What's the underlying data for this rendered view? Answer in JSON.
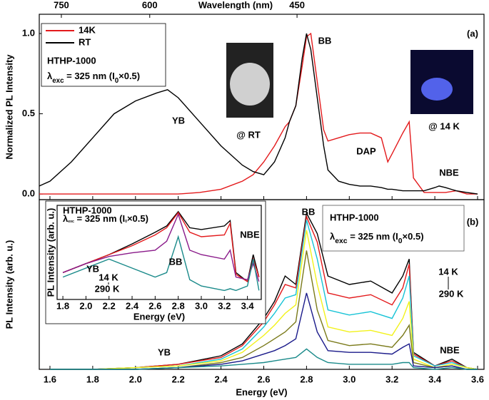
{
  "chart_data": [
    {
      "type": "line",
      "panel_label": "(a)",
      "ylabel": "Normalized PL Intensity",
      "x2label": "Wavelength (nm)",
      "x2ticks": [
        750,
        600,
        450
      ],
      "xlim": [
        1.55,
        3.63
      ],
      "ylim": [
        -0.035,
        1.12
      ],
      "yticks": [
        {
          "value": 0,
          "label": "0.0"
        },
        {
          "value": 0.5,
          "label": "0.5"
        },
        {
          "value": 1,
          "label": "1.0"
        }
      ],
      "legend": "upper left",
      "sample": "HTHP-1000",
      "excitation": [
        "λ",
        "exc",
        " = 325 nm (I",
        "0",
        "×0.5)"
      ],
      "x": [
        1.55,
        1.6,
        1.7,
        1.8,
        1.9,
        2.0,
        2.1,
        2.15,
        2.2,
        2.3,
        2.4,
        2.5,
        2.55,
        2.6,
        2.65,
        2.7,
        2.72,
        2.75,
        2.78,
        2.8,
        2.82,
        2.85,
        2.88,
        2.9,
        2.95,
        3.0,
        3.05,
        3.1,
        3.15,
        3.18,
        3.2,
        3.25,
        3.28,
        3.3,
        3.35,
        3.4,
        3.42,
        3.45,
        3.5,
        3.55,
        3.6
      ],
      "series": [
        {
          "name": "14K",
          "color": "#e31a1c",
          "values": [
            0,
            0,
            0,
            0,
            0,
            0,
            0,
            0,
            0,
            0.01,
            0.03,
            0.08,
            0.12,
            0.2,
            0.3,
            0.42,
            0.45,
            0.55,
            0.8,
            0.98,
            1.0,
            0.7,
            0.4,
            0.33,
            0.35,
            0.37,
            0.38,
            0.38,
            0.35,
            0.2,
            0.25,
            0.38,
            0.45,
            0.1,
            0.01,
            0.01,
            0.01,
            0.01,
            0.02,
            0,
            0
          ]
        },
        {
          "name": "RT",
          "color": "#000000",
          "values": [
            0.05,
            0.08,
            0.2,
            0.35,
            0.5,
            0.58,
            0.63,
            0.65,
            0.6,
            0.45,
            0.3,
            0.18,
            0.14,
            0.12,
            0.2,
            0.35,
            0.45,
            0.55,
            0.85,
            1.0,
            0.9,
            0.6,
            0.3,
            0.15,
            0.08,
            0.06,
            0.05,
            0.05,
            0.04,
            0.03,
            0.03,
            0.02,
            0.02,
            0.02,
            0.02,
            0.04,
            0.05,
            0.04,
            0.02,
            0.01,
            0
          ]
        }
      ],
      "annotations": [
        "YB",
        "@ RT",
        "BB",
        "DAP",
        "@ 14 K",
        "NBE"
      ]
    },
    {
      "type": "line",
      "panel_label": "(b)",
      "ylabel": "PL Intensity (arb. u.)",
      "xlabel": "Energy (eV)",
      "xlim": [
        1.55,
        3.63
      ],
      "ylim": [
        0,
        1
      ],
      "xticks": [
        1.6,
        1.8,
        {
          "value": 2,
          "label": "2.0"
        },
        2.2,
        2.4,
        2.6,
        2.8,
        {
          "value": 3,
          "label": "3.0"
        },
        3.2,
        3.4,
        3.6
      ],
      "sample": "HTHP-1000",
      "excitation": [
        "λ",
        "exc",
        " = 325 nm (I",
        "0",
        "×0.5)"
      ],
      "x": [
        1.6,
        1.8,
        2.0,
        2.2,
        2.4,
        2.5,
        2.6,
        2.65,
        2.7,
        2.75,
        2.8,
        2.85,
        2.9,
        3.0,
        3.1,
        3.2,
        3.25,
        3.28,
        3.3,
        3.4,
        3.48,
        3.55,
        3.6
      ],
      "series": [
        {
          "color": "#000000",
          "values": [
            0,
            0,
            0.01,
            0.03,
            0.08,
            0.15,
            0.3,
            0.4,
            0.55,
            0.5,
            0.92,
            0.8,
            0.55,
            0.5,
            0.52,
            0.45,
            0.55,
            0.65,
            0.1,
            0.02,
            0.06,
            0.01,
            0
          ]
        },
        {
          "color": "#e31a1c",
          "values": [
            0,
            0,
            0.01,
            0.03,
            0.07,
            0.14,
            0.28,
            0.38,
            0.5,
            0.48,
            0.9,
            0.75,
            0.45,
            0.42,
            0.44,
            0.38,
            0.48,
            0.62,
            0.09,
            0.02,
            0.05,
            0.01,
            0
          ]
        },
        {
          "color": "#17c3d6",
          "values": [
            0,
            0,
            0.01,
            0.02,
            0.06,
            0.12,
            0.25,
            0.33,
            0.42,
            0.44,
            0.88,
            0.65,
            0.35,
            0.32,
            0.34,
            0.3,
            0.42,
            0.55,
            0.08,
            0.02,
            0.04,
            0.01,
            0
          ]
        },
        {
          "color": "#f2f21a",
          "values": [
            0,
            0,
            0.01,
            0.02,
            0.05,
            0.1,
            0.2,
            0.26,
            0.33,
            0.38,
            0.82,
            0.5,
            0.25,
            0.22,
            0.23,
            0.2,
            0.3,
            0.4,
            0.06,
            0.01,
            0.03,
            0.01,
            0
          ]
        },
        {
          "color": "#7a7a1a",
          "values": [
            0,
            0,
            0,
            0.01,
            0.04,
            0.07,
            0.14,
            0.18,
            0.22,
            0.28,
            0.7,
            0.35,
            0.17,
            0.14,
            0.15,
            0.13,
            0.2,
            0.26,
            0.04,
            0.01,
            0.02,
            0,
            0
          ]
        },
        {
          "color": "#1a1a8a",
          "values": [
            0,
            0,
            0,
            0.01,
            0.03,
            0.05,
            0.09,
            0.11,
            0.14,
            0.18,
            0.45,
            0.22,
            0.11,
            0.1,
            0.1,
            0.09,
            0.13,
            0.15,
            0.02,
            0.01,
            0.02,
            0,
            0
          ]
        },
        {
          "color": "#1a8a8a",
          "values": [
            0,
            0,
            0,
            0.01,
            0.02,
            0.03,
            0.04,
            0.05,
            0.06,
            0.07,
            0.12,
            0.07,
            0.04,
            0.03,
            0.03,
            0.03,
            0.04,
            0.04,
            0.01,
            0,
            0.01,
            0,
            0
          ]
        }
      ],
      "annotations": [
        "BB",
        "YB",
        "NBE",
        "14 K",
        "290 K"
      ]
    },
    {
      "type": "line",
      "ylabel": "PL Intensity (arb. u.)",
      "xlabel": "Energy (eV)",
      "xlim": [
        1.75,
        3.52
      ],
      "ylim": [
        0,
        1.05
      ],
      "xticks": [
        1.8,
        {
          "value": 2,
          "label": "2.0"
        },
        2.2,
        2.4,
        2.6,
        2.8,
        {
          "value": 3,
          "label": "3.0"
        },
        3.2,
        3.4
      ],
      "sample": "HTHP-1000",
      "excitation": [
        "λ",
        "exc",
        " = 325 nm (I",
        "0",
        "×0.5)"
      ],
      "x": [
        1.8,
        2.0,
        2.2,
        2.4,
        2.6,
        2.7,
        2.8,
        2.9,
        3.0,
        3.2,
        3.25,
        3.3,
        3.4,
        3.45,
        3.5
      ],
      "series": [
        {
          "color": "#000000",
          "values": [
            0.3,
            0.4,
            0.5,
            0.62,
            0.75,
            0.82,
            0.98,
            0.8,
            0.78,
            0.82,
            0.88,
            0.3,
            0.2,
            0.5,
            0.25
          ]
        },
        {
          "color": "#e31a1c",
          "values": [
            0.3,
            0.4,
            0.5,
            0.6,
            0.72,
            0.8,
            0.97,
            0.75,
            0.7,
            0.72,
            0.85,
            0.28,
            0.2,
            0.45,
            0.25
          ]
        },
        {
          "color": "#8a1a8a",
          "values": [
            0.3,
            0.4,
            0.48,
            0.52,
            0.55,
            0.65,
            0.95,
            0.55,
            0.5,
            0.45,
            0.55,
            0.25,
            0.22,
            0.4,
            0.2
          ]
        },
        {
          "color": "#1a8a8a",
          "values": [
            0.25,
            0.35,
            0.45,
            0.35,
            0.25,
            0.3,
            0.7,
            0.22,
            0.15,
            0.1,
            0.12,
            0.1,
            0.15,
            0.45,
            0.1
          ]
        }
      ],
      "annotations": [
        "YB",
        "BB",
        "NBE",
        "14 K",
        "290 K"
      ]
    }
  ]
}
